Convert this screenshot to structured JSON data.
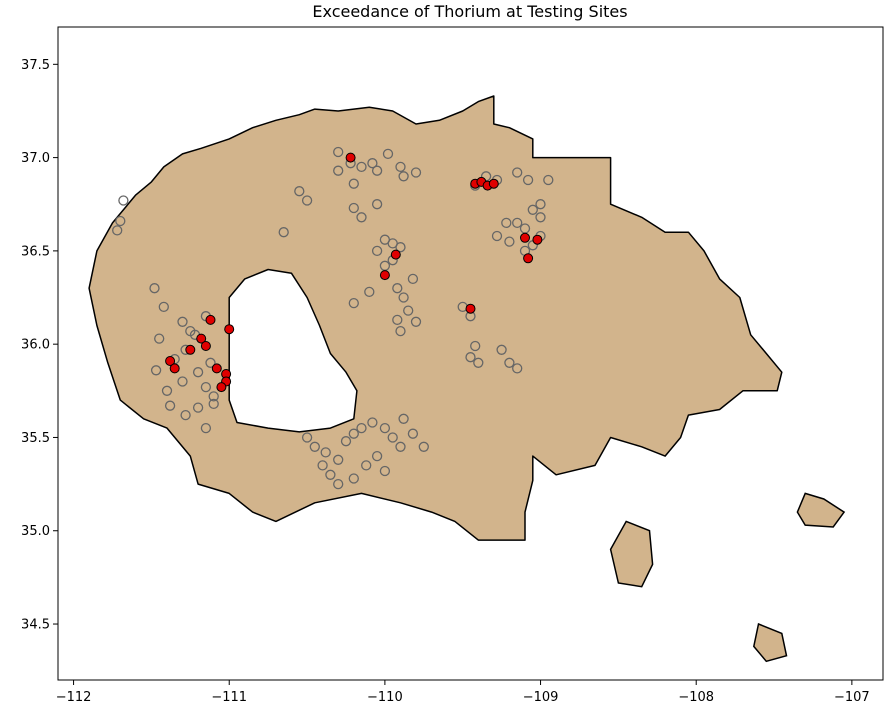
{
  "title": "Exceedance of Thorium at Testing Sites",
  "colors": {
    "land": "#d2b48c",
    "outline": "#000000",
    "site_normal_edge": "#666666",
    "site_exceed_fill": "#e00000",
    "site_exceed_edge": "#000000"
  },
  "chart_data": {
    "type": "scatter",
    "title": "Exceedance of Thorium at Testing Sites",
    "xlabel": "",
    "ylabel": "",
    "xlim": [
      -112.1,
      -106.8
    ],
    "ylim": [
      34.2,
      37.7
    ],
    "x_ticks": [
      {
        "value": -112,
        "label": "−112"
      },
      {
        "value": -111,
        "label": "−111"
      },
      {
        "value": -110,
        "label": "−110"
      },
      {
        "value": -109,
        "label": "−109"
      },
      {
        "value": -108,
        "label": "−108"
      },
      {
        "value": -107,
        "label": "−107"
      }
    ],
    "y_ticks": [
      {
        "value": 34.5,
        "label": "34.5"
      },
      {
        "value": 35.0,
        "label": "35.0"
      },
      {
        "value": 35.5,
        "label": "35.5"
      },
      {
        "value": 36.0,
        "label": "36.0"
      },
      {
        "value": 36.5,
        "label": "36.5"
      },
      {
        "value": 37.0,
        "label": "37.0"
      },
      {
        "value": 37.5,
        "label": "37.5"
      }
    ],
    "grid": false,
    "legend": "none",
    "region_main": [
      [
        -111.6,
        36.8
      ],
      [
        -111.5,
        36.87
      ],
      [
        -111.42,
        36.95
      ],
      [
        -111.3,
        37.02
      ],
      [
        -111.18,
        37.05
      ],
      [
        -111.0,
        37.1
      ],
      [
        -110.85,
        37.16
      ],
      [
        -110.7,
        37.2
      ],
      [
        -110.55,
        37.23
      ],
      [
        -110.45,
        37.26
      ],
      [
        -110.3,
        37.25
      ],
      [
        -110.1,
        37.27
      ],
      [
        -109.95,
        37.25
      ],
      [
        -109.8,
        37.18
      ],
      [
        -109.65,
        37.2
      ],
      [
        -109.5,
        37.25
      ],
      [
        -109.4,
        37.3
      ],
      [
        -109.3,
        37.33
      ],
      [
        -109.3,
        37.18
      ],
      [
        -109.2,
        37.16
      ],
      [
        -109.05,
        37.1
      ],
      [
        -109.05,
        37.0
      ],
      [
        -108.55,
        37.0
      ],
      [
        -108.55,
        36.75
      ],
      [
        -108.35,
        36.68
      ],
      [
        -108.2,
        36.6
      ],
      [
        -108.05,
        36.6
      ],
      [
        -107.95,
        36.5
      ],
      [
        -107.85,
        36.35
      ],
      [
        -107.72,
        36.25
      ],
      [
        -107.65,
        36.05
      ],
      [
        -107.55,
        35.95
      ],
      [
        -107.45,
        35.85
      ],
      [
        -107.48,
        35.75
      ],
      [
        -107.7,
        35.75
      ],
      [
        -107.85,
        35.65
      ],
      [
        -108.05,
        35.62
      ],
      [
        -108.1,
        35.5
      ],
      [
        -108.2,
        35.4
      ],
      [
        -108.35,
        35.45
      ],
      [
        -108.55,
        35.5
      ],
      [
        -108.65,
        35.35
      ],
      [
        -108.9,
        35.3
      ],
      [
        -109.05,
        35.4
      ],
      [
        -109.05,
        35.27
      ],
      [
        -109.1,
        35.1
      ],
      [
        -109.1,
        34.95
      ],
      [
        -109.4,
        34.95
      ],
      [
        -109.55,
        35.05
      ],
      [
        -109.7,
        35.1
      ],
      [
        -109.9,
        35.15
      ],
      [
        -110.15,
        35.2
      ],
      [
        -110.45,
        35.15
      ],
      [
        -110.7,
        35.05
      ],
      [
        -110.85,
        35.1
      ],
      [
        -111.0,
        35.2
      ],
      [
        -111.2,
        35.25
      ],
      [
        -111.25,
        35.4
      ],
      [
        -111.4,
        35.55
      ],
      [
        -111.55,
        35.6
      ],
      [
        -111.7,
        35.7
      ],
      [
        -111.78,
        35.9
      ],
      [
        -111.85,
        36.1
      ],
      [
        -111.9,
        36.3
      ],
      [
        -111.85,
        36.5
      ],
      [
        -111.75,
        36.65
      ]
    ],
    "region_hole": [
      [
        -111.0,
        36.25
      ],
      [
        -110.9,
        36.35
      ],
      [
        -110.75,
        36.4
      ],
      [
        -110.6,
        36.38
      ],
      [
        -110.5,
        36.25
      ],
      [
        -110.42,
        36.1
      ],
      [
        -110.35,
        35.95
      ],
      [
        -110.25,
        35.85
      ],
      [
        -110.18,
        35.75
      ],
      [
        -110.2,
        35.6
      ],
      [
        -110.35,
        35.55
      ],
      [
        -110.55,
        35.53
      ],
      [
        -110.75,
        35.55
      ],
      [
        -110.95,
        35.58
      ],
      [
        -111.0,
        35.7
      ]
    ],
    "region_islands": [
      [
        [
          -108.45,
          35.05
        ],
        [
          -108.3,
          35.0
        ],
        [
          -108.28,
          34.82
        ],
        [
          -108.35,
          34.7
        ],
        [
          -108.5,
          34.72
        ],
        [
          -108.55,
          34.9
        ]
      ],
      [
        [
          -107.3,
          35.2
        ],
        [
          -107.18,
          35.17
        ],
        [
          -107.05,
          35.1
        ],
        [
          -107.12,
          35.02
        ],
        [
          -107.3,
          35.03
        ],
        [
          -107.35,
          35.1
        ]
      ],
      [
        [
          -107.6,
          34.5
        ],
        [
          -107.45,
          34.45
        ],
        [
          -107.42,
          34.33
        ],
        [
          -107.55,
          34.3
        ],
        [
          -107.63,
          34.38
        ]
      ]
    ],
    "series": [
      {
        "name": "",
        "points": [
          [
            -111.68,
            36.77
          ],
          [
            -111.7,
            36.66
          ],
          [
            -111.72,
            36.61
          ],
          [
            -111.48,
            36.3
          ],
          [
            -111.42,
            36.2
          ],
          [
            -111.45,
            36.03
          ],
          [
            -111.3,
            36.12
          ],
          [
            -111.25,
            36.07
          ],
          [
            -111.28,
            35.97
          ],
          [
            -111.35,
            35.92
          ],
          [
            -111.47,
            35.86
          ],
          [
            -111.3,
            35.8
          ],
          [
            -111.2,
            35.85
          ],
          [
            -111.12,
            35.9
          ],
          [
            -111.15,
            35.77
          ],
          [
            -111.1,
            35.72
          ],
          [
            -111.2,
            35.66
          ],
          [
            -111.28,
            35.62
          ],
          [
            -111.4,
            35.75
          ],
          [
            -111.38,
            35.67
          ],
          [
            -111.15,
            35.55
          ],
          [
            -111.1,
            35.68
          ],
          [
            -111.22,
            36.05
          ],
          [
            -111.15,
            36.15
          ],
          [
            -110.3,
            37.03
          ],
          [
            -110.22,
            36.97
          ],
          [
            -110.3,
            36.93
          ],
          [
            -110.15,
            36.95
          ],
          [
            -110.08,
            36.97
          ],
          [
            -110.2,
            36.86
          ],
          [
            -109.98,
            37.02
          ],
          [
            -110.05,
            36.93
          ],
          [
            -110.55,
            36.82
          ],
          [
            -110.5,
            36.77
          ],
          [
            -110.65,
            36.6
          ],
          [
            -110.2,
            36.73
          ],
          [
            -110.15,
            36.68
          ],
          [
            -110.05,
            36.75
          ],
          [
            -110.05,
            36.5
          ],
          [
            -110.0,
            36.56
          ],
          [
            -109.95,
            36.54
          ],
          [
            -109.9,
            36.52
          ],
          [
            -109.95,
            36.45
          ],
          [
            -110.0,
            36.42
          ],
          [
            -110.1,
            36.28
          ],
          [
            -110.2,
            36.22
          ],
          [
            -109.92,
            36.3
          ],
          [
            -109.88,
            36.25
          ],
          [
            -109.82,
            36.35
          ],
          [
            -109.85,
            36.18
          ],
          [
            -109.92,
            36.13
          ],
          [
            -109.9,
            36.07
          ],
          [
            -109.8,
            36.12
          ],
          [
            -109.45,
            36.15
          ],
          [
            -109.5,
            36.2
          ],
          [
            -109.42,
            35.99
          ],
          [
            -109.45,
            35.93
          ],
          [
            -109.4,
            35.9
          ],
          [
            -109.25,
            35.97
          ],
          [
            -109.2,
            35.9
          ],
          [
            -109.15,
            35.87
          ],
          [
            -109.88,
            36.9
          ],
          [
            -109.9,
            36.95
          ],
          [
            -109.8,
            36.92
          ],
          [
            -109.42,
            36.85
          ],
          [
            -109.35,
            36.9
          ],
          [
            -109.28,
            36.88
          ],
          [
            -109.15,
            36.92
          ],
          [
            -109.08,
            36.88
          ],
          [
            -108.95,
            36.88
          ],
          [
            -109.0,
            36.68
          ],
          [
            -109.05,
            36.72
          ],
          [
            -109.0,
            36.75
          ],
          [
            -109.1,
            36.62
          ],
          [
            -109.15,
            36.65
          ],
          [
            -109.22,
            36.65
          ],
          [
            -109.28,
            36.58
          ],
          [
            -109.2,
            36.55
          ],
          [
            -109.1,
            36.5
          ],
          [
            -109.05,
            36.53
          ],
          [
            -109.0,
            36.58
          ],
          [
            -110.5,
            35.5
          ],
          [
            -110.45,
            35.45
          ],
          [
            -110.38,
            35.42
          ],
          [
            -110.3,
            35.38
          ],
          [
            -110.25,
            35.48
          ],
          [
            -110.2,
            35.52
          ],
          [
            -110.15,
            35.55
          ],
          [
            -110.08,
            35.58
          ],
          [
            -110.0,
            35.55
          ],
          [
            -109.95,
            35.5
          ],
          [
            -109.88,
            35.6
          ],
          [
            -109.82,
            35.52
          ],
          [
            -109.75,
            35.45
          ],
          [
            -110.35,
            35.3
          ],
          [
            -110.4,
            35.35
          ],
          [
            -110.3,
            35.25
          ],
          [
            -110.2,
            35.28
          ],
          [
            -110.12,
            35.35
          ],
          [
            -110.05,
            35.4
          ],
          [
            -109.9,
            35.45
          ],
          [
            -110.0,
            35.32
          ]
        ]
      },
      {
        "name": "",
        "points": [
          [
            -110.22,
            37.0
          ],
          [
            -109.93,
            36.48
          ],
          [
            -110.0,
            36.37
          ],
          [
            -109.45,
            36.19
          ],
          [
            -109.42,
            36.86
          ],
          [
            -109.38,
            36.87
          ],
          [
            -109.34,
            36.85
          ],
          [
            -109.3,
            36.86
          ],
          [
            -109.1,
            36.57
          ],
          [
            -109.02,
            36.56
          ],
          [
            -109.08,
            36.46
          ],
          [
            -111.38,
            35.91
          ],
          [
            -111.35,
            35.87
          ],
          [
            -111.25,
            35.97
          ],
          [
            -111.12,
            36.13
          ],
          [
            -111.0,
            36.08
          ],
          [
            -111.18,
            36.03
          ],
          [
            -111.15,
            35.99
          ],
          [
            -111.08,
            35.87
          ],
          [
            -111.02,
            35.84
          ],
          [
            -111.02,
            35.8
          ],
          [
            -111.05,
            35.77
          ]
        ]
      }
    ]
  }
}
